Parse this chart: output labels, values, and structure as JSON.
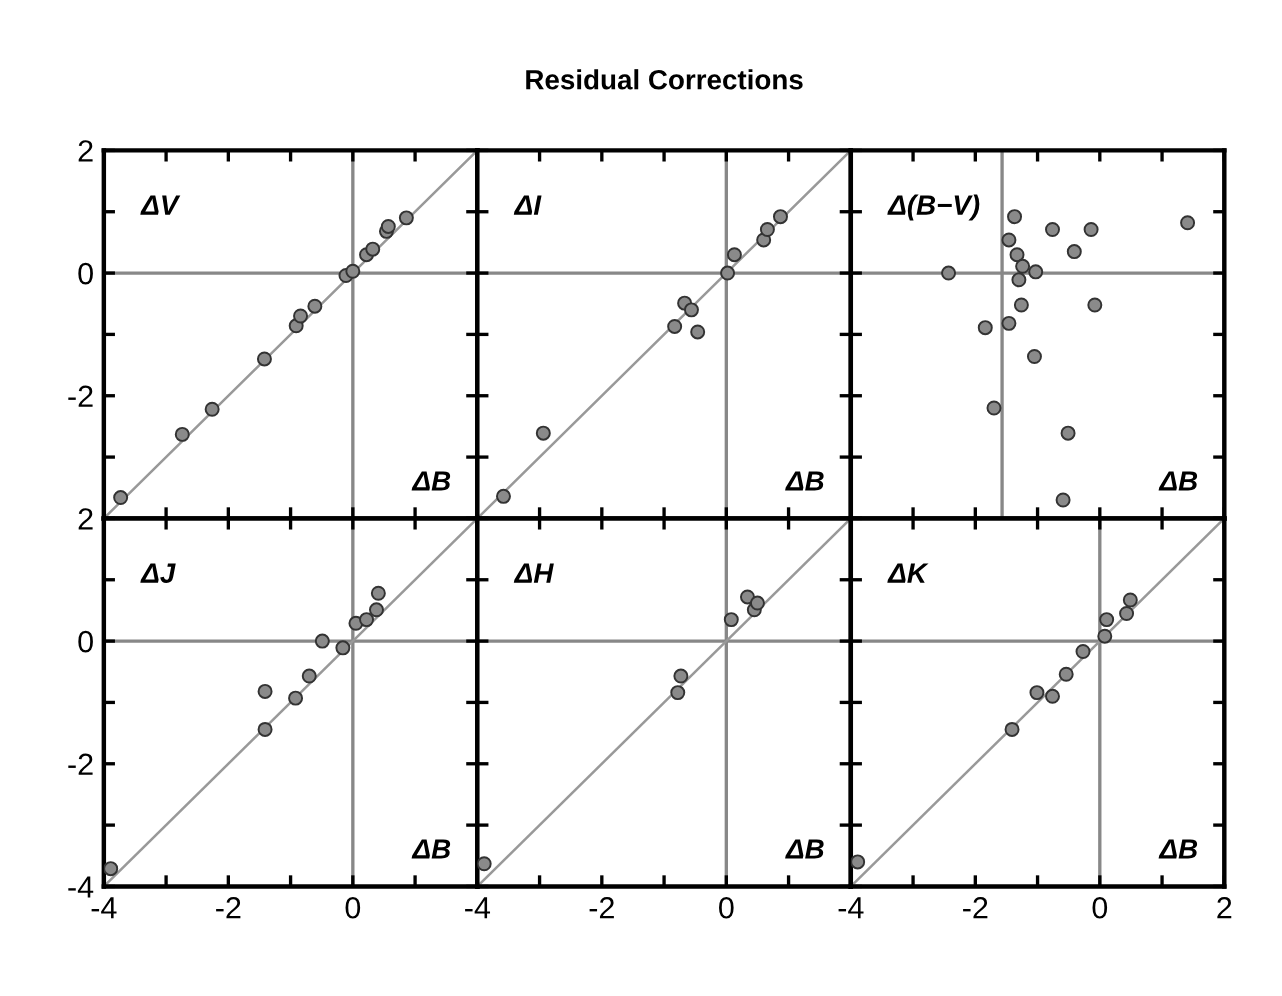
{
  "chart_data": [
    {
      "type": "scatter",
      "annotations": [
        "ΔV",
        "ΔB"
      ],
      "tick_labels": "y",
      "xlim": [
        -4,
        2
      ],
      "ylim": [
        -4,
        2
      ],
      "xticks": [
        -4,
        {
          "value": -3,
          "label": null
        },
        -2,
        {
          "value": -1,
          "label": null
        },
        0,
        {
          "value": 1,
          "label": null
        },
        2
      ],
      "yticks": [
        {
          "value": -4,
          "label": null
        },
        {
          "value": -3,
          "label": null
        },
        -2,
        {
          "value": -1,
          "label": null
        },
        0,
        {
          "value": 1,
          "label": null
        },
        2
      ],
      "grid": false,
      "ref_lines": [
        {
          "axis": "x",
          "value": 0,
          "color": "#888888"
        },
        {
          "axis": "y",
          "value": 0,
          "color": "#888888"
        }
      ],
      "series": [
        {
          "type": "line",
          "color": "#999999",
          "marker": "none",
          "x": [
            -4,
            2
          ],
          "values": [
            -4,
            2
          ]
        },
        {
          "color": "#8a8a8a",
          "marker": "circle",
          "x": [
            -3.73,
            -2.74,
            -2.26,
            -1.42,
            -0.91,
            -0.84,
            -0.61,
            -0.11,
            0.0,
            0.22,
            0.32,
            0.54,
            0.57,
            0.86
          ],
          "values": [
            -3.66,
            -2.63,
            -2.22,
            -1.4,
            -0.86,
            -0.7,
            -0.54,
            -0.04,
            0.03,
            0.3,
            0.39,
            0.68,
            0.76,
            0.9
          ]
        }
      ]
    },
    {
      "type": "scatter",
      "title": "Residual Corrections",
      "annotations": [
        "ΔI",
        "ΔB"
      ],
      "tick_labels": false,
      "xlim": [
        -4,
        2
      ],
      "ylim": [
        -4,
        2
      ],
      "xticks": [
        -4,
        {
          "value": -3,
          "label": null
        },
        -2,
        {
          "value": -1,
          "label": null
        },
        0,
        {
          "value": 1,
          "label": null
        },
        2
      ],
      "yticks": [
        {
          "value": -4,
          "label": null
        },
        {
          "value": -3,
          "label": null
        },
        -2,
        {
          "value": -1,
          "label": null
        },
        0,
        {
          "value": 1,
          "label": null
        },
        2
      ],
      "grid": false,
      "ref_lines": [
        {
          "axis": "x",
          "value": 0,
          "color": "#888888"
        },
        {
          "axis": "y",
          "value": 0,
          "color": "#888888"
        }
      ],
      "series": [
        {
          "type": "line",
          "color": "#999999",
          "marker": "none",
          "x": [
            -4,
            2
          ],
          "values": [
            -4,
            2
          ]
        },
        {
          "color": "#8a8a8a",
          "marker": "circle",
          "x": [
            -3.58,
            -2.94,
            -0.67,
            -0.56,
            -0.83,
            -0.46,
            0.02,
            0.13,
            0.6,
            0.66,
            0.87
          ],
          "values": [
            -3.64,
            -2.61,
            -0.49,
            -0.6,
            -0.87,
            -0.96,
            0.0,
            0.3,
            0.54,
            0.71,
            0.92
          ]
        }
      ]
    },
    {
      "type": "scatter",
      "annotations": [
        "Δ(B−V)",
        "ΔB"
      ],
      "tick_labels": false,
      "xlim": [
        -4,
        2
      ],
      "ylim": [
        -4,
        2
      ],
      "xticks": [
        -4,
        {
          "value": -3,
          "label": null
        },
        -2,
        {
          "value": -1,
          "label": null
        },
        0,
        {
          "value": 1,
          "label": null
        },
        2
      ],
      "yticks": [
        {
          "value": -4,
          "label": null
        },
        {
          "value": -3,
          "label": null
        },
        -2,
        {
          "value": -1,
          "label": null
        },
        0,
        {
          "value": 1,
          "label": null
        },
        2
      ],
      "grid": false,
      "ref_lines": [
        {
          "axis": "x",
          "value": -1.57,
          "color": "#888888"
        },
        {
          "axis": "y",
          "value": 0,
          "color": "#888888"
        }
      ],
      "series": [
        {
          "color": "#8a8a8a",
          "marker": "circle",
          "x": [
            -2.43,
            -1.37,
            -1.46,
            -1.33,
            -1.24,
            -1.03,
            -1.3,
            -1.26,
            -1.84,
            -1.46,
            -1.05,
            -0.76,
            -0.14,
            -0.41,
            -0.08,
            1.41,
            -1.7,
            -0.51,
            -0.59
          ],
          "values": [
            0.0,
            0.92,
            0.54,
            0.3,
            0.11,
            0.02,
            -0.11,
            -0.52,
            -0.89,
            -0.82,
            -1.36,
            0.71,
            0.71,
            0.35,
            -0.52,
            0.82,
            -2.2,
            -2.61,
            -3.7
          ]
        }
      ]
    },
    {
      "type": "scatter",
      "annotations": [
        "ΔJ",
        "ΔB"
      ],
      "xlim": [
        -4,
        2
      ],
      "ylim": [
        -4,
        2
      ],
      "xticks": [
        -4,
        {
          "value": -3,
          "label": null
        },
        -2,
        {
          "value": -1,
          "label": null
        },
        0,
        {
          "value": 1,
          "label": null
        },
        {
          "value": 2,
          "label": null
        }
      ],
      "yticks": [
        -4,
        {
          "value": -3,
          "label": null
        },
        -2,
        {
          "value": -1,
          "label": null
        },
        0,
        {
          "value": 1,
          "label": null
        },
        2
      ],
      "grid": false,
      "ref_lines": [
        {
          "axis": "x",
          "value": 0,
          "color": "#888888"
        },
        {
          "axis": "y",
          "value": 0,
          "color": "#888888"
        }
      ],
      "series": [
        {
          "type": "line",
          "color": "#999999",
          "marker": "none",
          "x": [
            -4,
            2
          ],
          "values": [
            -4,
            2
          ]
        },
        {
          "color": "#8a8a8a",
          "marker": "circle",
          "x": [
            -3.89,
            -1.41,
            -1.41,
            -0.92,
            -0.7,
            -0.49,
            -0.16,
            0.05,
            0.22,
            0.38,
            0.41
          ],
          "values": [
            -3.71,
            -1.44,
            -0.82,
            -0.93,
            -0.57,
            0.0,
            -0.11,
            0.29,
            0.35,
            0.51,
            0.78
          ]
        }
      ]
    },
    {
      "type": "scatter",
      "annotations": [
        "ΔH",
        "ΔB"
      ],
      "tick_labels": "x",
      "xlim": [
        -4,
        2
      ],
      "ylim": [
        -4,
        2
      ],
      "xticks": [
        -4,
        {
          "value": -3,
          "label": null
        },
        -2,
        {
          "value": -1,
          "label": null
        },
        0,
        {
          "value": 1,
          "label": null
        },
        {
          "value": 2,
          "label": null
        }
      ],
      "yticks": [
        {
          "value": -4,
          "label": null
        },
        {
          "value": -3,
          "label": null
        },
        -2,
        {
          "value": -1,
          "label": null
        },
        0,
        {
          "value": 1,
          "label": null
        },
        2
      ],
      "grid": false,
      "ref_lines": [
        {
          "axis": "x",
          "value": 0,
          "color": "#888888"
        },
        {
          "axis": "y",
          "value": 0,
          "color": "#888888"
        }
      ],
      "series": [
        {
          "type": "line",
          "color": "#999999",
          "marker": "none",
          "x": [
            -4,
            2
          ],
          "values": [
            -4,
            2
          ]
        },
        {
          "color": "#8a8a8a",
          "marker": "circle",
          "x": [
            -3.89,
            -0.78,
            -0.73,
            0.08,
            0.34,
            0.45,
            0.5
          ],
          "values": [
            -3.63,
            -0.84,
            -0.57,
            0.35,
            0.72,
            0.51,
            0.62
          ]
        }
      ]
    },
    {
      "type": "scatter",
      "annotations": [
        "ΔK",
        "ΔB"
      ],
      "tick_labels": "x",
      "xlim": [
        -4,
        2
      ],
      "ylim": [
        -4,
        2
      ],
      "xticks": [
        -4,
        {
          "value": -3,
          "label": null
        },
        -2,
        {
          "value": -1,
          "label": null
        },
        0,
        {
          "value": 1,
          "label": null
        },
        2
      ],
      "yticks": [
        {
          "value": -4,
          "label": null
        },
        {
          "value": -3,
          "label": null
        },
        -2,
        {
          "value": -1,
          "label": null
        },
        0,
        {
          "value": 1,
          "label": null
        },
        2
      ],
      "grid": false,
      "ref_lines": [
        {
          "axis": "x",
          "value": 0,
          "color": "#888888"
        },
        {
          "axis": "y",
          "value": 0,
          "color": "#888888"
        }
      ],
      "series": [
        {
          "type": "line",
          "color": "#999999",
          "marker": "none",
          "x": [
            -4,
            2
          ],
          "values": [
            -4,
            2
          ]
        },
        {
          "color": "#8a8a8a",
          "marker": "circle",
          "x": [
            -3.89,
            -1.41,
            -1.01,
            -0.76,
            -0.54,
            -0.27,
            0.08,
            0.11,
            0.43,
            0.49
          ],
          "values": [
            -3.6,
            -1.44,
            -0.84,
            -0.9,
            -0.54,
            -0.17,
            0.08,
            0.35,
            0.45,
            0.67
          ]
        }
      ]
    }
  ]
}
